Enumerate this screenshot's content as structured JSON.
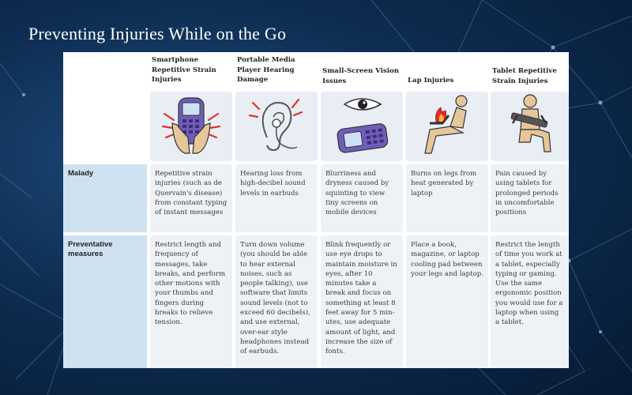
{
  "title": "Preventing Injuries While on the Go",
  "columns": [
    {
      "label": "Smartphone Repetitive Strain Injuries",
      "icon": "smartphone-strain-icon"
    },
    {
      "label": "Portable Media Player Hearing Damage",
      "icon": "ear-hearing-icon"
    },
    {
      "label": "Small-Screen Vision Issues",
      "icon": "eye-vision-icon"
    },
    {
      "label": "Lap Injuries",
      "icon": "laptop-lap-icon"
    },
    {
      "label": "Tablet Repetitive Strain Injuries",
      "icon": "tablet-strain-icon"
    }
  ],
  "rows": [
    {
      "label": "Malady",
      "cells": [
        "Repetitive strain injuries (such as de Quervain's disease) from constant typing of instant messages",
        "Hearing loss from high-decibel sound levels in earbuds",
        "Blurriness and dryness caused by squinting to view tiny screens on mobile devices",
        "Burns on legs from heat generated by laptop",
        "Pain caused by using tablets for prolonged periods in uncomfortable positions"
      ]
    },
    {
      "label": "Preventative measures",
      "cells": [
        "Restrict length and frequency of messages, take breaks, and perform other motions with your thumbs and fingers during breaks to relieve tension.",
        "Turn down volume (you should be able to hear external noises, such as people talking), use software that limits sound levels (not to exceed 60 decibels), and use external, over-ear style headphones instead of earbuds.",
        "Blink frequently or use eye drops to maintain moisture in eyes, after 10 minutes take a break and focus on something at least 8 feet away for 5 min-utes, use adequate amount of light, and increase the size of fonts.",
        "Place a book, magazine, or laptop cooling pad between your legs and laptop.",
        "Restrict the length of time you work at a tablet, especially typing or gaming. Use the same ergonomic position you would use for a laptop when using a tablet."
      ]
    }
  ],
  "colors": {
    "background": "#0e2d52",
    "label_cell": "#cfe2f1",
    "body_cell": "#eef2f7",
    "icon_red": "#e0302a",
    "icon_purple": "#6f5db8",
    "icon_tan": "#e6c79a"
  }
}
